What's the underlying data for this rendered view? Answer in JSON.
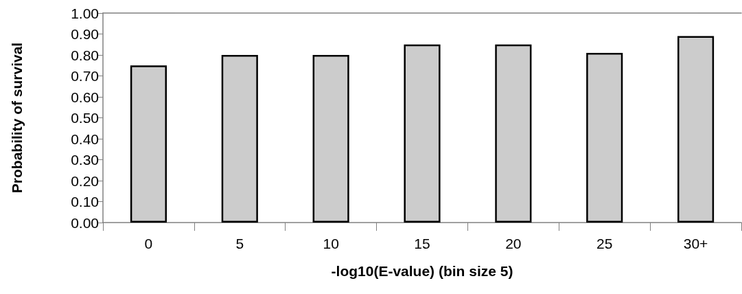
{
  "chart_data": {
    "type": "bar",
    "xlabel": "-log10(E-value) (bin size 5)",
    "ylabel": "Probability of survival",
    "categories": [
      "0",
      "5",
      "10",
      "15",
      "20",
      "25",
      "30+"
    ],
    "values": [
      0.75,
      0.8,
      0.8,
      0.85,
      0.85,
      0.81,
      0.89
    ],
    "color": "#cccccc",
    "ylim": [
      0,
      1
    ],
    "yticks": [
      {
        "value": 0,
        "label": "0.00"
      },
      {
        "value": 0.1,
        "label": "0.10"
      },
      {
        "value": 0.2,
        "label": "0.20"
      },
      {
        "value": 0.3,
        "label": "0.30"
      },
      {
        "value": 0.4,
        "label": "0.40"
      },
      {
        "value": 0.5,
        "label": "0.50"
      },
      {
        "value": 0.6,
        "label": "0.60"
      },
      {
        "value": 0.7,
        "label": "0.70"
      },
      {
        "value": 0.8,
        "label": "0.80"
      },
      {
        "value": 0.9,
        "label": "0.90"
      },
      {
        "value": 1,
        "label": "1.00"
      }
    ],
    "grid": false
  }
}
